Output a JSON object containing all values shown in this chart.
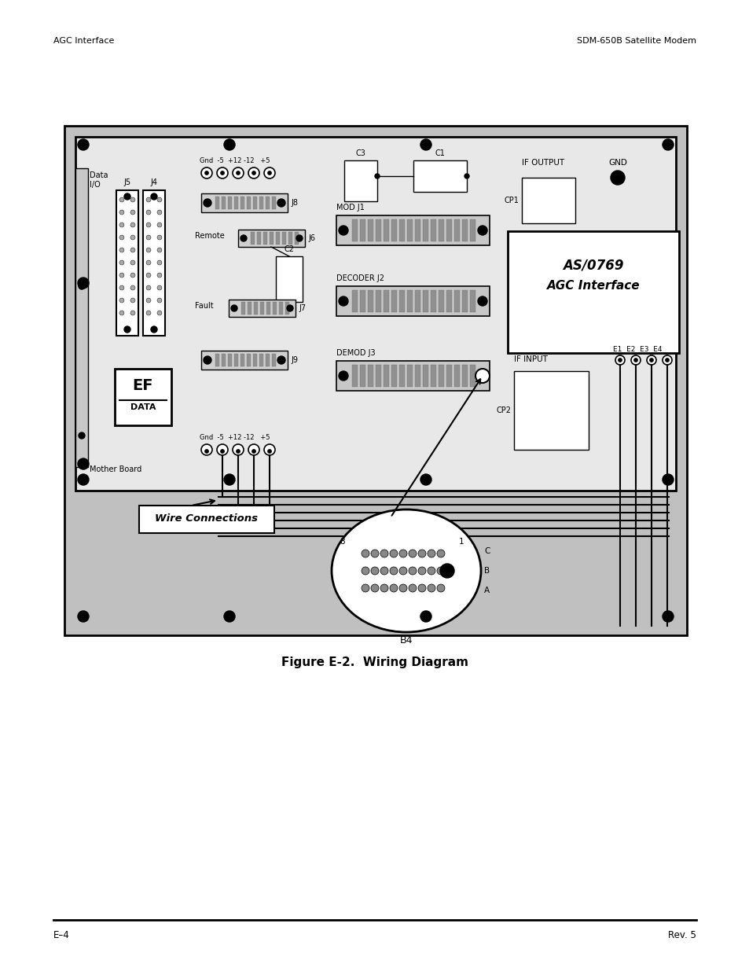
{
  "header_left": "AGC Interface",
  "header_right": "SDM-650B Satellite Modem",
  "footer_left": "E–4",
  "footer_right": "Rev. 5",
  "caption": "Figure E-2.  Wiring Diagram",
  "bg_color": "#ffffff",
  "outer_bg": "#c0c0c0",
  "board_bg": "#e8e8e8"
}
